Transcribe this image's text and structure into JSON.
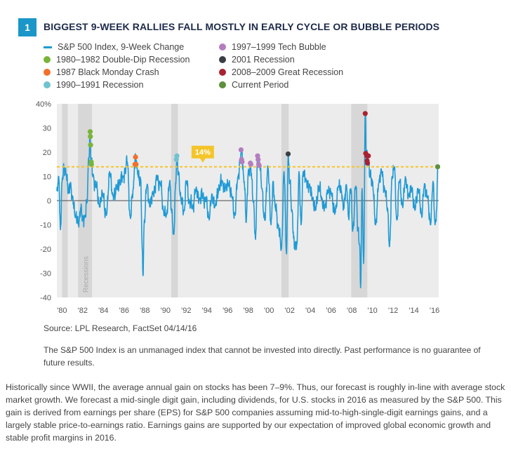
{
  "figure": {
    "number": "1",
    "title": "BIGGEST 9-WEEK RALLIES FALL MOSTLY IN EARLY CYCLE OR BUBBLE PERIODS"
  },
  "legend": {
    "items": [
      {
        "label": "S&P 500 Index, 9-Week Change",
        "color": "#1e9ad6",
        "kind": "line"
      },
      {
        "label": "1980–1982 Double-Dip Recession",
        "color": "#79b43a",
        "kind": "dot"
      },
      {
        "label": "1987 Black Monday Crash",
        "color": "#f0722a",
        "kind": "dot"
      },
      {
        "label": "1990–1991 Recession",
        "color": "#6fc3d0",
        "kind": "dot"
      },
      {
        "label": "1997–1999 Tech Bubble",
        "color": "#b47dc0",
        "kind": "dot"
      },
      {
        "label": "2001 Recession",
        "color": "#3a3f46",
        "kind": "dot"
      },
      {
        "label": "2008–2009 Great Recession",
        "color": "#a82232",
        "kind": "dot"
      },
      {
        "label": "Current Period",
        "color": "#5d8f3c",
        "kind": "dot"
      }
    ]
  },
  "chart_data": {
    "type": "line",
    "title": "Biggest 9-Week Rallies Fall Mostly in Early Cycle or Bubble Periods",
    "xlabel": "",
    "ylabel": "",
    "xlim": [
      1979.5,
      2016.4
    ],
    "ylim": [
      -40,
      40
    ],
    "y_ticks": [
      -40,
      -30,
      -20,
      -10,
      0,
      10,
      20,
      30,
      40
    ],
    "y_tick_labels": [
      "-40",
      "-30",
      "-20",
      "-10",
      "0",
      "10",
      "20",
      "30",
      "40%"
    ],
    "x_ticks": [
      1980,
      1982,
      1984,
      1986,
      1988,
      1990,
      1992,
      1994,
      1996,
      1998,
      2000,
      2002,
      2004,
      2006,
      2008,
      2010,
      2012,
      2014,
      2016
    ],
    "x_tick_labels": [
      "'80",
      "'82",
      "'84",
      "'86",
      "'88",
      "'90",
      "'92",
      "'94",
      "'96",
      "'98",
      "'00",
      "'02",
      "'04",
      "'06",
      "'08",
      "'10",
      "'12",
      "'14",
      "'16"
    ],
    "recession_label": "Recessions",
    "recessions": [
      [
        1980.0,
        1980.55
      ],
      [
        1981.55,
        1982.9
      ],
      [
        1990.55,
        1991.2
      ],
      [
        2001.2,
        2001.9
      ],
      [
        2007.95,
        2009.5
      ]
    ],
    "threshold": {
      "value": 14,
      "label": "14%",
      "label_x": 1993.6
    },
    "series": [
      {
        "name": "S&P 500 Index, 9-Week Change",
        "color": "#1e9ad6",
        "anchors": [
          [
            1979.5,
            4
          ],
          [
            1979.7,
            9
          ],
          [
            1979.85,
            -12
          ],
          [
            1980.0,
            8
          ],
          [
            1980.2,
            14
          ],
          [
            1980.4,
            11
          ],
          [
            1980.6,
            3
          ],
          [
            1980.8,
            7
          ],
          [
            1981.0,
            1
          ],
          [
            1981.3,
            -6
          ],
          [
            1981.6,
            -10
          ],
          [
            1981.8,
            -3
          ],
          [
            1982.0,
            -8
          ],
          [
            1982.2,
            -6
          ],
          [
            1982.4,
            -1
          ],
          [
            1982.6,
            18
          ],
          [
            1982.7,
            28
          ],
          [
            1982.8,
            16
          ],
          [
            1983.0,
            10
          ],
          [
            1983.3,
            6
          ],
          [
            1983.6,
            -2
          ],
          [
            1983.9,
            3
          ],
          [
            1984.3,
            -6
          ],
          [
            1984.6,
            12
          ],
          [
            1984.9,
            2
          ],
          [
            1985.3,
            5
          ],
          [
            1985.6,
            8
          ],
          [
            1985.9,
            10
          ],
          [
            1986.1,
            13
          ],
          [
            1986.3,
            16
          ],
          [
            1986.6,
            -7
          ],
          [
            1986.9,
            5
          ],
          [
            1987.0,
            15
          ],
          [
            1987.1,
            18
          ],
          [
            1987.3,
            11
          ],
          [
            1987.6,
            9
          ],
          [
            1987.75,
            -20
          ],
          [
            1987.82,
            -31
          ],
          [
            1987.95,
            -8
          ],
          [
            1988.2,
            6
          ],
          [
            1988.5,
            -2
          ],
          [
            1988.8,
            3
          ],
          [
            1989.2,
            9
          ],
          [
            1989.5,
            7
          ],
          [
            1989.8,
            -4
          ],
          [
            1990.1,
            -6
          ],
          [
            1990.4,
            8
          ],
          [
            1990.6,
            -5
          ],
          [
            1990.8,
            -14
          ],
          [
            1990.95,
            5
          ],
          [
            1991.1,
            17
          ],
          [
            1991.25,
            12
          ],
          [
            1991.5,
            0
          ],
          [
            1991.8,
            -4
          ],
          [
            1992.0,
            8
          ],
          [
            1992.3,
            0
          ],
          [
            1992.6,
            -3
          ],
          [
            1992.9,
            4
          ],
          [
            1993.3,
            1
          ],
          [
            1993.6,
            2
          ],
          [
            1993.9,
            0
          ],
          [
            1994.2,
            -7
          ],
          [
            1994.5,
            2
          ],
          [
            1994.8,
            -2
          ],
          [
            1995.2,
            6
          ],
          [
            1995.5,
            8
          ],
          [
            1995.8,
            5
          ],
          [
            1996.1,
            7
          ],
          [
            1996.4,
            2
          ],
          [
            1996.7,
            -6
          ],
          [
            1997.0,
            10
          ],
          [
            1997.2,
            17
          ],
          [
            1997.35,
            21
          ],
          [
            1997.6,
            8
          ],
          [
            1997.8,
            -9
          ],
          [
            1998.0,
            12
          ],
          [
            1998.2,
            14
          ],
          [
            1998.5,
            0
          ],
          [
            1998.7,
            -16
          ],
          [
            1998.9,
            18
          ],
          [
            1999.1,
            15
          ],
          [
            1999.3,
            5
          ],
          [
            1999.6,
            -8
          ],
          [
            1999.9,
            14
          ],
          [
            2000.2,
            -10
          ],
          [
            2000.4,
            8
          ],
          [
            2000.6,
            -3
          ],
          [
            2000.9,
            -10
          ],
          [
            2001.2,
            -20
          ],
          [
            2001.45,
            12
          ],
          [
            2001.7,
            -22
          ],
          [
            2001.85,
            19
          ],
          [
            2002.0,
            8
          ],
          [
            2002.2,
            -4
          ],
          [
            2002.5,
            -20
          ],
          [
            2002.7,
            -18
          ],
          [
            2002.9,
            12
          ],
          [
            2003.1,
            -10
          ],
          [
            2003.3,
            12
          ],
          [
            2003.6,
            8
          ],
          [
            2003.9,
            6
          ],
          [
            2004.2,
            1
          ],
          [
            2004.5,
            -4
          ],
          [
            2004.8,
            6
          ],
          [
            2005.1,
            1
          ],
          [
            2005.4,
            -3
          ],
          [
            2005.7,
            4
          ],
          [
            2006.0,
            3
          ],
          [
            2006.4,
            -5
          ],
          [
            2006.7,
            6
          ],
          [
            2007.0,
            4
          ],
          [
            2007.2,
            -3
          ],
          [
            2007.5,
            6
          ],
          [
            2007.7,
            -7
          ],
          [
            2007.9,
            5
          ],
          [
            2008.1,
            -12
          ],
          [
            2008.4,
            6
          ],
          [
            2008.6,
            -12
          ],
          [
            2008.75,
            -18
          ],
          [
            2008.85,
            -36
          ],
          [
            2009.0,
            5
          ],
          [
            2009.15,
            -26
          ],
          [
            2009.3,
            36
          ],
          [
            2009.4,
            19
          ],
          [
            2009.55,
            17
          ],
          [
            2009.75,
            10
          ],
          [
            2010.0,
            8
          ],
          [
            2010.3,
            -10
          ],
          [
            2010.6,
            7
          ],
          [
            2010.9,
            12
          ],
          [
            2011.2,
            4
          ],
          [
            2011.45,
            -3
          ],
          [
            2011.65,
            -19
          ],
          [
            2011.9,
            10
          ],
          [
            2012.1,
            14
          ],
          [
            2012.35,
            -8
          ],
          [
            2012.6,
            8
          ],
          [
            2012.9,
            -2
          ],
          [
            2013.2,
            9
          ],
          [
            2013.5,
            2
          ],
          [
            2013.8,
            5
          ],
          [
            2014.1,
            -4
          ],
          [
            2014.4,
            5
          ],
          [
            2014.75,
            -6
          ],
          [
            2015.0,
            6
          ],
          [
            2015.3,
            2
          ],
          [
            2015.6,
            -10
          ],
          [
            2015.85,
            8
          ],
          [
            2016.05,
            -10
          ],
          [
            2016.2,
            -4
          ],
          [
            2016.3,
            14
          ]
        ]
      }
    ],
    "highlights": [
      {
        "period": "1980–1982 Double-Dip Recession",
        "color": "#79b43a",
        "points": [
          [
            1982.72,
            28.5
          ],
          [
            1982.74,
            26.5
          ],
          [
            1982.76,
            23
          ],
          [
            1982.82,
            16
          ],
          [
            1982.84,
            15
          ]
        ]
      },
      {
        "period": "1987 Black Monday Crash",
        "color": "#f0722a",
        "points": [
          [
            1987.05,
            15
          ],
          [
            1987.1,
            18
          ],
          [
            1987.15,
            15
          ]
        ]
      },
      {
        "period": "1990–1991 Recession",
        "color": "#6fc3d0",
        "points": [
          [
            1991.05,
            17
          ],
          [
            1991.1,
            18.5
          ]
        ]
      },
      {
        "period": "1997–1999 Tech Bubble",
        "color": "#b47dc0",
        "points": [
          [
            1997.3,
            21
          ],
          [
            1997.35,
            17
          ],
          [
            1997.4,
            16
          ],
          [
            1998.2,
            15.5
          ],
          [
            1998.25,
            15
          ],
          [
            1998.9,
            18.5
          ],
          [
            1998.95,
            17
          ],
          [
            1999.0,
            15
          ],
          [
            1999.05,
            14.5
          ]
        ]
      },
      {
        "period": "2001 Recession",
        "color": "#3a3f46",
        "points": [
          [
            2001.85,
            19.3
          ]
        ]
      },
      {
        "period": "2008–2009 Great Recession",
        "color": "#a82232",
        "points": [
          [
            2009.3,
            36
          ],
          [
            2009.35,
            19.5
          ],
          [
            2009.45,
            18.5
          ],
          [
            2009.48,
            16.5
          ],
          [
            2009.52,
            15.5
          ],
          [
            2009.6,
            18.5
          ]
        ]
      },
      {
        "period": "Current Period",
        "color": "#5d8f3c",
        "points": [
          [
            2016.3,
            14
          ]
        ]
      }
    ]
  },
  "source_text": "Source: LPL Research, FactSet   04/14/16",
  "disclaimer_text": "The S&P 500 Index is an unmanaged index that cannot be invested into directly. Past performance is no guarantee of future results.",
  "body_text": "Historically since WWII, the average annual gain on stocks has been 7–9%. Thus, our forecast is roughly in-line with average stock market growth. We forecast a mid-single digit gain, including dividends, for U.S. stocks in 2016 as measured by the S&P 500. This gain is derived from earnings per share (EPS) for S&P 500 companies assuming mid-to-high-single-digit earnings gains, and a largely stable price-to-earnings ratio. Earnings gains are supported by our expectation of improved global economic growth and stable profit margins in 2016."
}
